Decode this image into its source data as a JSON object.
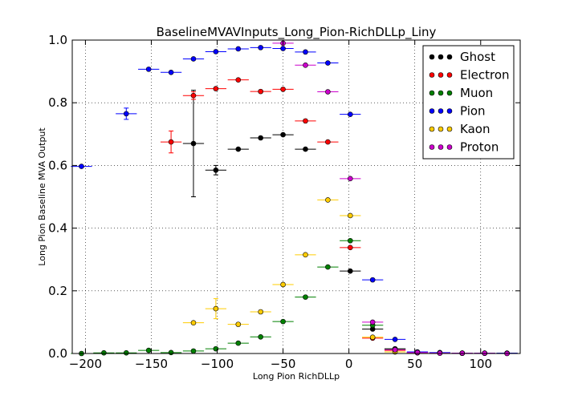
{
  "chart_data": {
    "type": "scatter",
    "title": "BaselineMVAVInputs_Long_Pion-RichDLLp_Liny",
    "xlabel": "Long Pion RichDLLp",
    "ylabel": "Long Pion Baseline MVA Output",
    "xlim": [
      -210,
      130
    ],
    "ylim": [
      0.0,
      1.0
    ],
    "xticks": [
      -200,
      -150,
      -100,
      -50,
      0,
      50,
      100
    ],
    "yticks": [
      0.0,
      0.2,
      0.4,
      0.6,
      0.8,
      1.0
    ],
    "xtick_labels": [
      "−200",
      "−150",
      "−100",
      "−50",
      "0",
      "50",
      "100"
    ],
    "ytick_labels": [
      "0.0",
      "0.2",
      "0.4",
      "0.6",
      "0.8",
      "1.0"
    ],
    "grid": true,
    "legend_position": "top-right",
    "series": [
      {
        "name": "Ghost",
        "color": "#000000",
        "xerr": 8,
        "points": [
          {
            "x": -118,
            "y": 0.67,
            "yerr": 0.17
          },
          {
            "x": -101,
            "y": 0.585,
            "yerr": 0.015
          },
          {
            "x": -84,
            "y": 0.652
          },
          {
            "x": -67,
            "y": 0.688
          },
          {
            "x": -50,
            "y": 0.698
          },
          {
            "x": -33,
            "y": 0.652
          },
          {
            "x": 1,
            "y": 0.263
          },
          {
            "x": 18,
            "y": 0.078
          },
          {
            "x": 35,
            "y": 0.015
          },
          {
            "x": 52,
            "y": 0.003
          },
          {
            "x": 69,
            "y": 0.002
          },
          {
            "x": 86,
            "y": 0.001
          },
          {
            "x": 103,
            "y": 0.001
          },
          {
            "x": 120,
            "y": 0.001
          }
        ]
      },
      {
        "name": "Electron",
        "color": "#ff0000",
        "xerr": 8,
        "points": [
          {
            "x": -135,
            "y": 0.675,
            "yerr": 0.035
          },
          {
            "x": -118,
            "y": 0.823,
            "yerr": 0.012
          },
          {
            "x": -101,
            "y": 0.845
          },
          {
            "x": -84,
            "y": 0.873
          },
          {
            "x": -67,
            "y": 0.836
          },
          {
            "x": -50,
            "y": 0.843
          },
          {
            "x": -33,
            "y": 0.742
          },
          {
            "x": -16,
            "y": 0.675
          },
          {
            "x": 1,
            "y": 0.338
          },
          {
            "x": 18,
            "y": 0.049
          },
          {
            "x": 35,
            "y": 0.01
          },
          {
            "x": 52,
            "y": 0.003
          },
          {
            "x": 69,
            "y": 0.002
          },
          {
            "x": 86,
            "y": 0.001
          }
        ]
      },
      {
        "name": "Muon",
        "color": "#008000",
        "xerr": 8,
        "points": [
          {
            "x": -203,
            "y": 0.0
          },
          {
            "x": -186,
            "y": 0.002
          },
          {
            "x": -169,
            "y": 0.002
          },
          {
            "x": -152,
            "y": 0.01
          },
          {
            "x": -135,
            "y": 0.003
          },
          {
            "x": -118,
            "y": 0.008
          },
          {
            "x": -101,
            "y": 0.015
          },
          {
            "x": -84,
            "y": 0.033
          },
          {
            "x": -67,
            "y": 0.053
          },
          {
            "x": -50,
            "y": 0.102
          },
          {
            "x": -33,
            "y": 0.18
          },
          {
            "x": -16,
            "y": 0.276
          },
          {
            "x": 1,
            "y": 0.36
          },
          {
            "x": 18,
            "y": 0.09
          },
          {
            "x": 35,
            "y": 0.013
          },
          {
            "x": 52,
            "y": 0.003
          }
        ]
      },
      {
        "name": "Pion",
        "color": "#0000ff",
        "xerr": 8,
        "points": [
          {
            "x": -203,
            "y": 0.597
          },
          {
            "x": -169,
            "y": 0.765,
            "yerr": 0.018
          },
          {
            "x": -152,
            "y": 0.907
          },
          {
            "x": -135,
            "y": 0.897
          },
          {
            "x": -118,
            "y": 0.94
          },
          {
            "x": -101,
            "y": 0.963
          },
          {
            "x": -84,
            "y": 0.972
          },
          {
            "x": -67,
            "y": 0.976
          },
          {
            "x": -50,
            "y": 0.973
          },
          {
            "x": -33,
            "y": 0.962
          },
          {
            "x": -16,
            "y": 0.927
          },
          {
            "x": 1,
            "y": 0.763
          },
          {
            "x": 18,
            "y": 0.235
          },
          {
            "x": 35,
            "y": 0.045
          },
          {
            "x": 52,
            "y": 0.005
          },
          {
            "x": 69,
            "y": 0.003
          },
          {
            "x": 86,
            "y": 0.001
          },
          {
            "x": 103,
            "y": 0.001
          },
          {
            "x": 120,
            "y": 0.001
          }
        ]
      },
      {
        "name": "Kaon",
        "color": "#ffcc00",
        "xerr": 8,
        "points": [
          {
            "x": -118,
            "y": 0.098
          },
          {
            "x": -101,
            "y": 0.143,
            "yerr": 0.032
          },
          {
            "x": -84,
            "y": 0.093
          },
          {
            "x": -67,
            "y": 0.133
          },
          {
            "x": -50,
            "y": 0.22
          },
          {
            "x": -33,
            "y": 0.315
          },
          {
            "x": -16,
            "y": 0.49
          },
          {
            "x": 1,
            "y": 0.44
          },
          {
            "x": 18,
            "y": 0.052
          },
          {
            "x": 35,
            "y": 0.005
          },
          {
            "x": 52,
            "y": 0.002
          }
        ]
      },
      {
        "name": "Proton",
        "color": "#cc00cc",
        "xerr": 8,
        "points": [
          {
            "x": -50,
            "y": 0.99
          },
          {
            "x": -33,
            "y": 0.92
          },
          {
            "x": -16,
            "y": 0.835
          },
          {
            "x": 1,
            "y": 0.558
          },
          {
            "x": 18,
            "y": 0.1
          },
          {
            "x": 35,
            "y": 0.012
          },
          {
            "x": 52,
            "y": 0.003
          },
          {
            "x": 69,
            "y": 0.001
          },
          {
            "x": 86,
            "y": 0.001
          },
          {
            "x": 103,
            "y": 0.001
          },
          {
            "x": 120,
            "y": 0.0
          }
        ]
      }
    ]
  }
}
